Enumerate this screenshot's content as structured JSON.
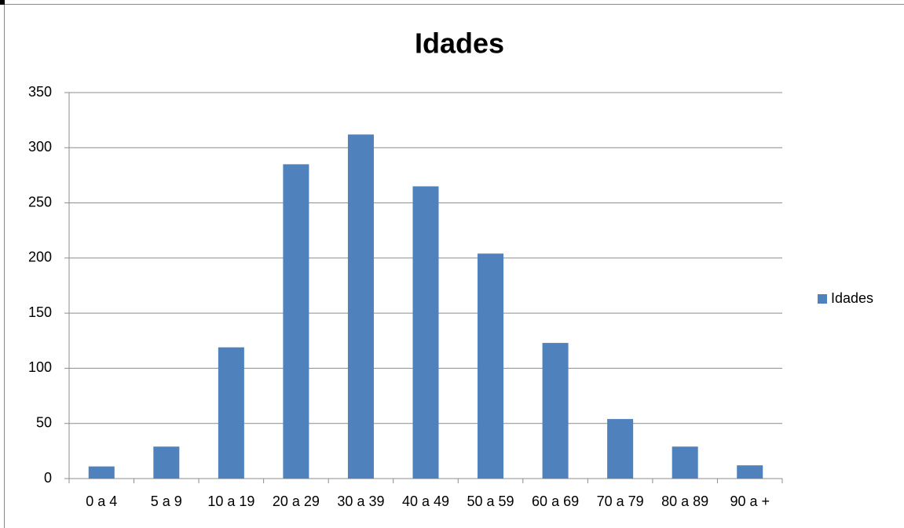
{
  "chart_data": {
    "type": "bar",
    "title": "Idades",
    "categories": [
      "0 a 4",
      "5 a 9",
      "10 a 19",
      "20 a 29",
      "30 a 39",
      "40 a 49",
      "50 a 59",
      "60 a 69",
      "70 a 79",
      "80 a 89",
      "90 a +"
    ],
    "series": [
      {
        "name": "Idades",
        "color": "#4f81bd",
        "values": [
          11,
          29,
          119,
          285,
          312,
          265,
          204,
          123,
          54,
          29,
          12
        ]
      }
    ],
    "ylim": [
      0,
      350
    ],
    "yticks": [
      0,
      50,
      100,
      150,
      200,
      250,
      300,
      350
    ],
    "grid": true,
    "legend": "right"
  }
}
